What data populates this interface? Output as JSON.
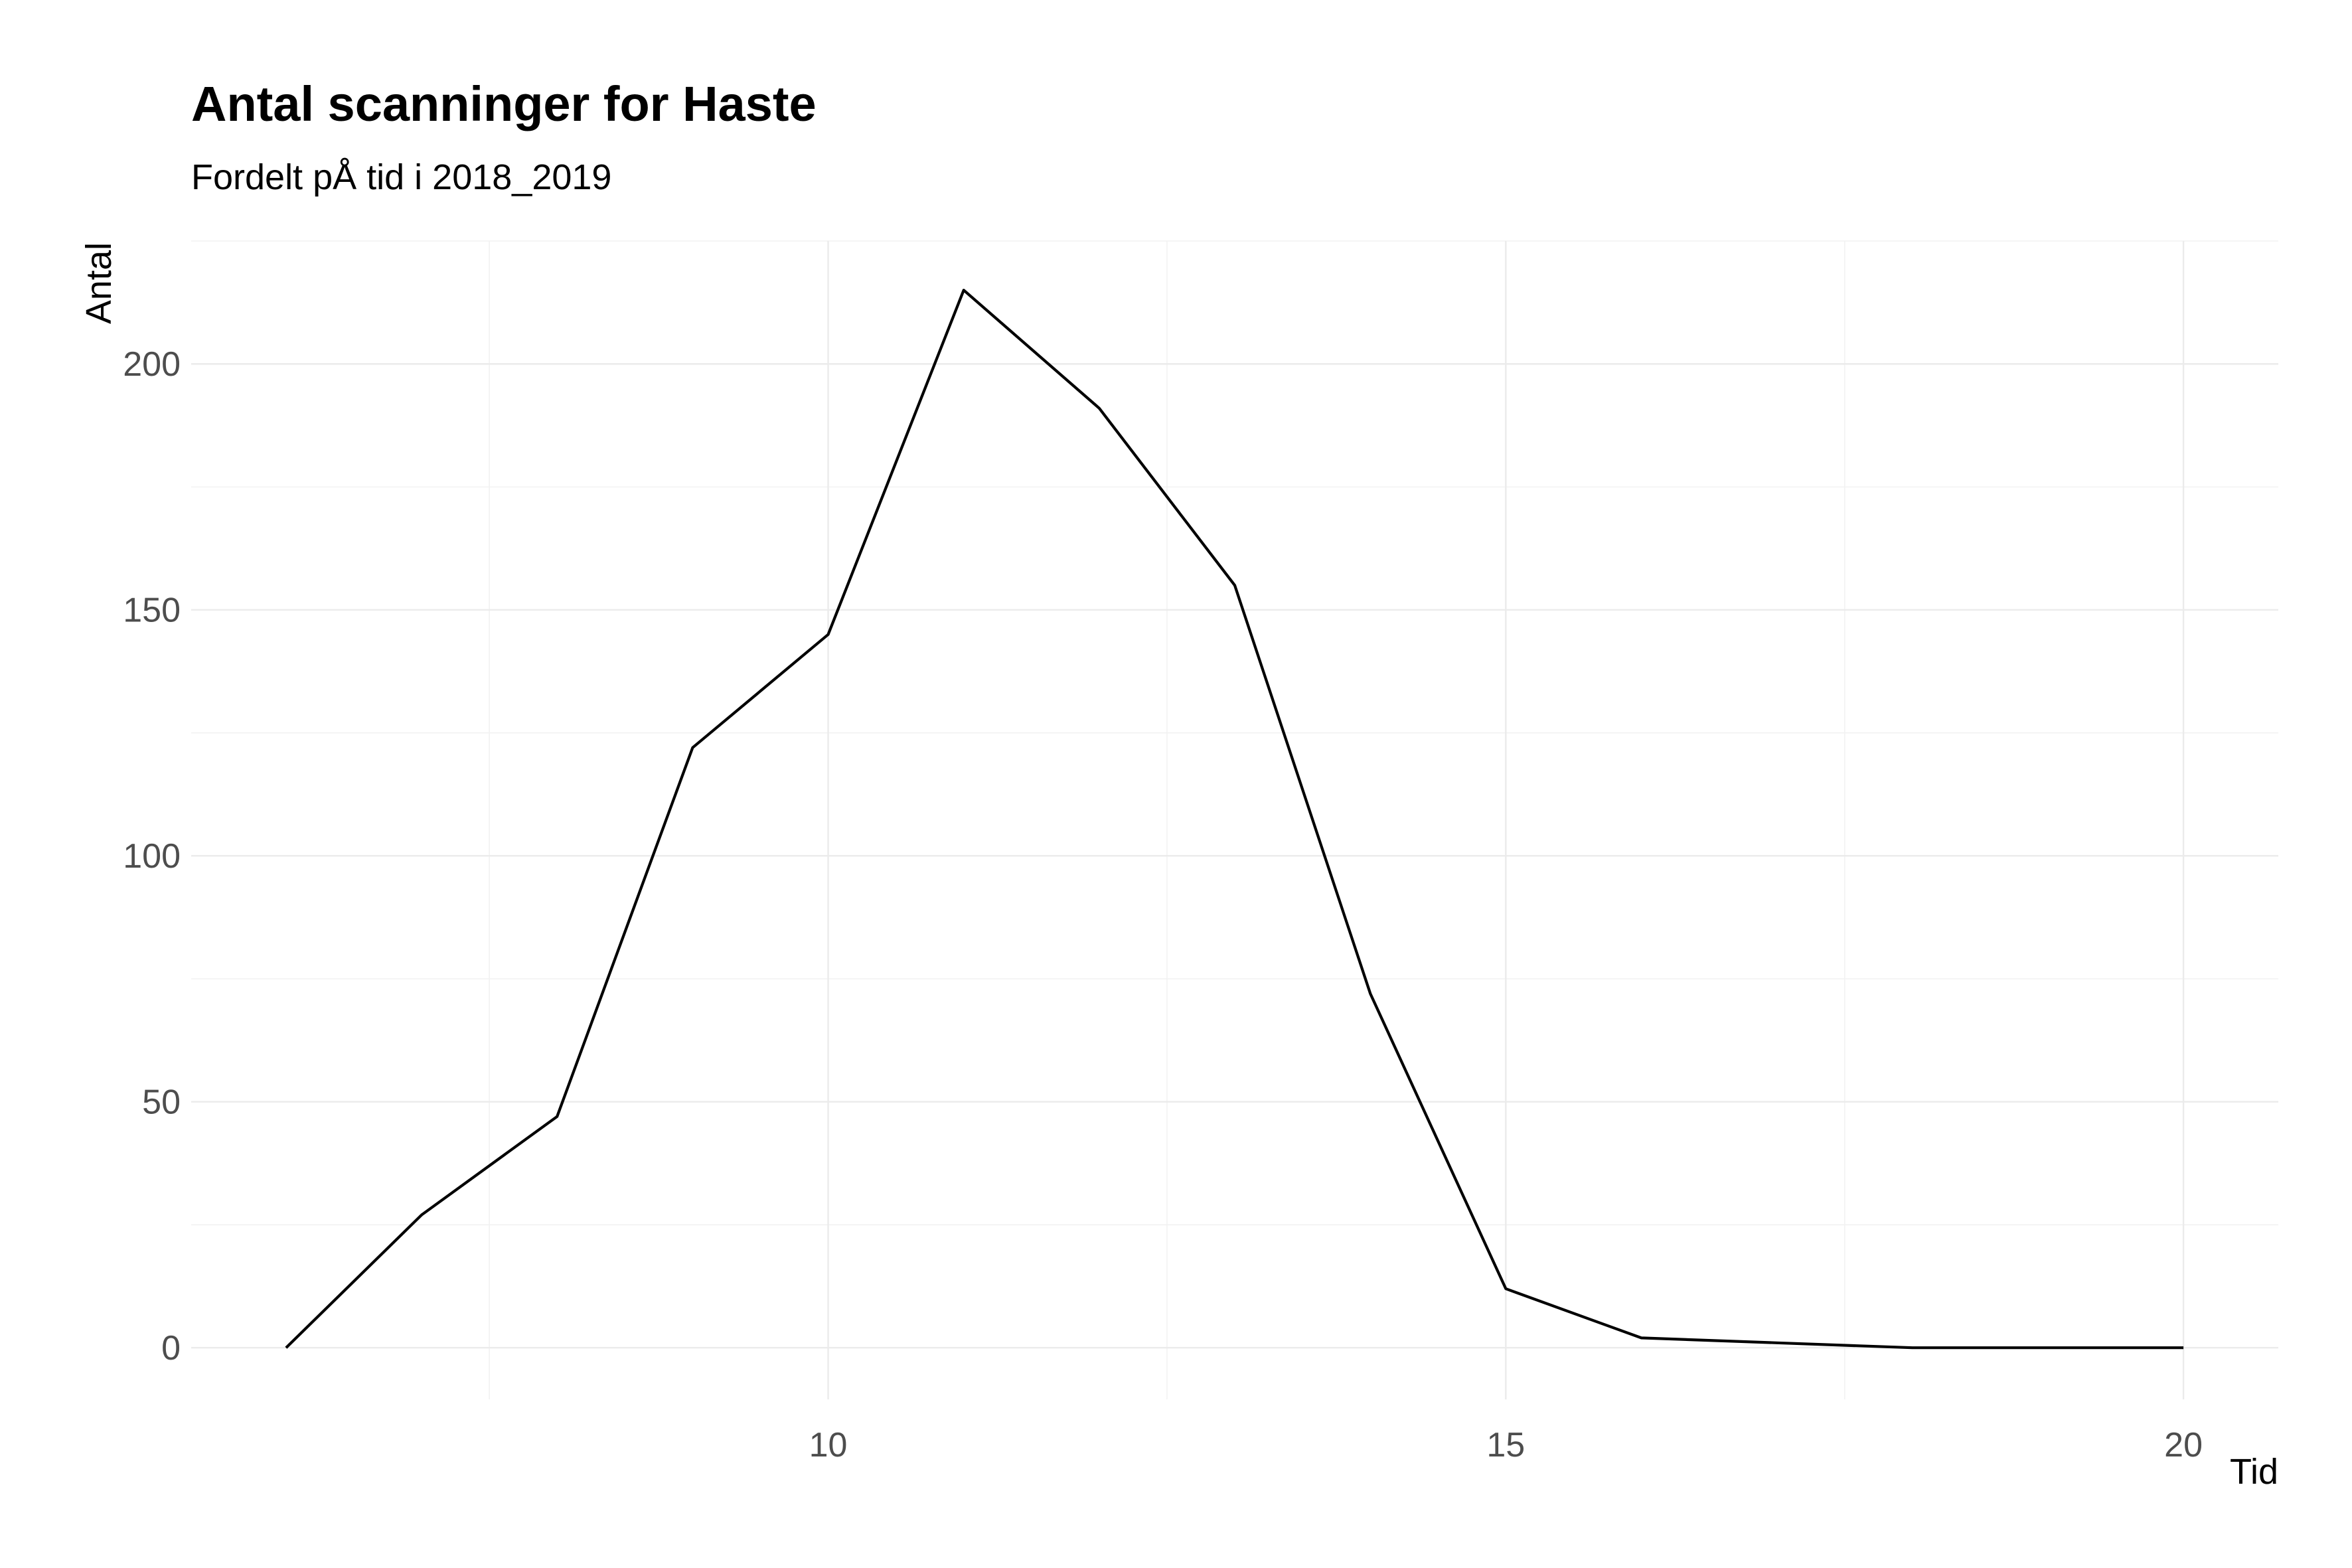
{
  "chart_data": {
    "type": "line",
    "title": "Antal scanninger for Haste",
    "subtitle": "Fordelt pÅ tid i 2018_2019",
    "xlabel": "Tid",
    "ylabel": "Antal",
    "xlim": [
      5.3,
      20.7
    ],
    "ylim": [
      -10.5,
      225
    ],
    "x_ticks": [
      10,
      15,
      20
    ],
    "y_ticks": [
      0,
      50,
      100,
      150,
      200
    ],
    "grid": true,
    "series": [
      {
        "color": "#000000",
        "x": [
          6,
          7,
          8,
          9,
          10,
          11,
          12,
          13,
          14,
          15,
          16,
          17,
          18,
          19,
          20
        ],
        "values": [
          0,
          27,
          47,
          122,
          145,
          215,
          191,
          155,
          72,
          12,
          2,
          1,
          0,
          0,
          0
        ]
      }
    ]
  }
}
